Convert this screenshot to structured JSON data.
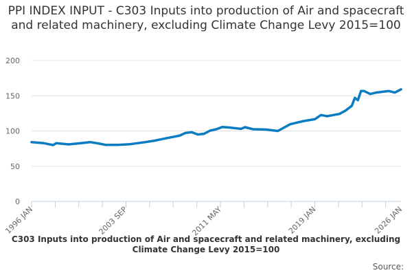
{
  "chart_data": {
    "type": "line",
    "title": "PPI INDEX INPUT - C303 Inputs into production of Air and spacecraft and related machinery, excluding Climate Change Levy 2015=100",
    "xlabel": "C303 Inputs into production of Air and spacecraft and related machinery, excluding Climate Change Levy 2015=100",
    "ylabel": "",
    "ylim": [
      0,
      200
    ],
    "yticks": [
      "0",
      "50",
      "100",
      "150",
      "200"
    ],
    "xticks": [
      "1996 JAN",
      "2003 SEP",
      "2011 MAY",
      "2019 JAN",
      "2026 JAN"
    ],
    "grid": true,
    "legend": "none",
    "color": "#0a7cc1",
    "series": [
      {
        "x": [
          "1996-01",
          "1997-01",
          "1997-10",
          "1998-01",
          "1999-01",
          "2000-01",
          "2000-10",
          "2001-07",
          "2002-01",
          "2003-01",
          "2004-01",
          "2005-01",
          "2006-01",
          "2007-01",
          "2008-01",
          "2008-07",
          "2009-01",
          "2009-07",
          "2010-01",
          "2010-07",
          "2011-01",
          "2011-07",
          "2012-01",
          "2013-01",
          "2013-05",
          "2014-01",
          "2015-01",
          "2016-01",
          "2017-01",
          "2018-01",
          "2019-01",
          "2019-07",
          "2020-01",
          "2021-01",
          "2021-07",
          "2022-01",
          "2022-04",
          "2022-07",
          "2022-10",
          "2023-01",
          "2023-07",
          "2024-01",
          "2025-01",
          "2025-07",
          "2026-01"
        ],
        "values": [
          84.2,
          82.6,
          80,
          82.6,
          81,
          82.6,
          84.2,
          82,
          80.3,
          80.3,
          81.3,
          83.6,
          86.2,
          90,
          93.3,
          97.2,
          98.2,
          95,
          96,
          100.5,
          102.4,
          105.7,
          105,
          103,
          105.4,
          102.4,
          102,
          100,
          109.6,
          113.8,
          116.7,
          122.6,
          121,
          124.2,
          129,
          135.6,
          147,
          143.7,
          156.7,
          156.7,
          152.5,
          154.5,
          156.7,
          154.5,
          159
        ]
      }
    ]
  },
  "source_label": "Source:"
}
